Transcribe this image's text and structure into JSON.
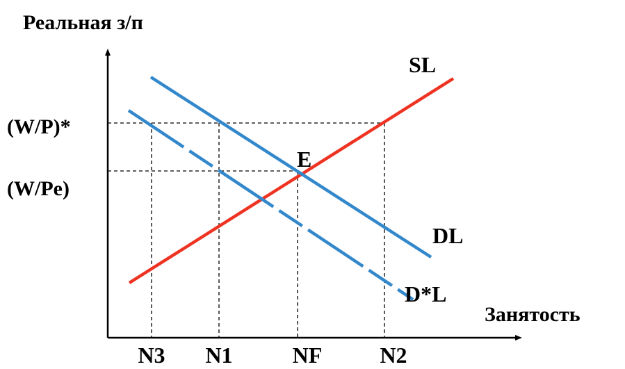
{
  "labels": {
    "y_axis": "Реальная з/п",
    "x_axis": "Занятость",
    "wage_star": "(W/P)*",
    "wage_eq": "(W/Pe)",
    "point_e": "E",
    "sl": "SL",
    "dl": "DL",
    "dstar_l": "D*L",
    "n3": "N3",
    "n1": "N1",
    "nf": "NF",
    "n2": "N2"
  },
  "colors": {
    "supply": "#ee3322",
    "demand": "#3388cc",
    "axis": "#000000"
  }
}
